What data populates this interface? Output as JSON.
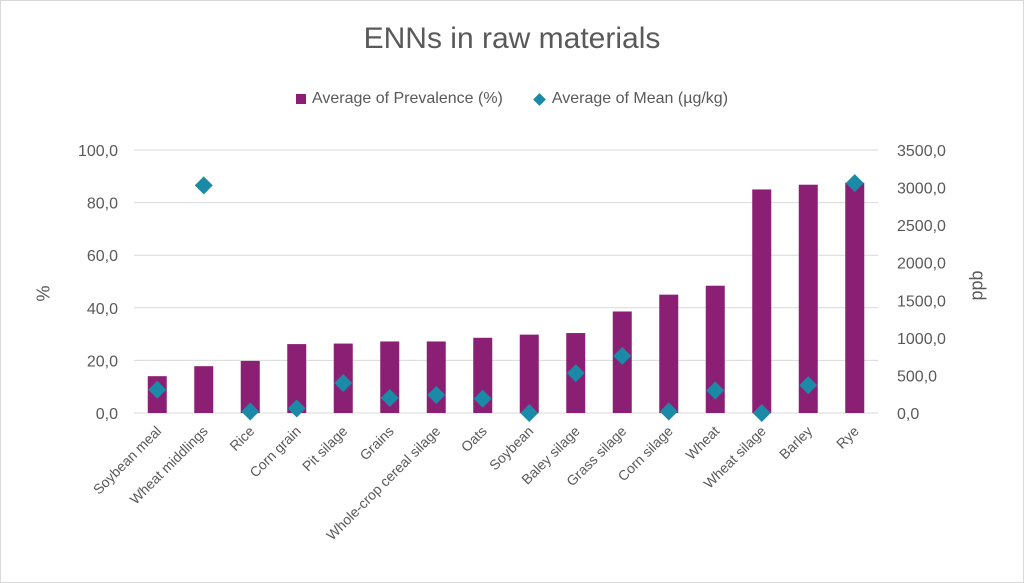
{
  "chart_data": {
    "type": "bar",
    "title": "ENNs in raw materials",
    "categories": [
      "Soybean meal",
      "Wheat middlings",
      "Rice",
      "Corn grain",
      "Pit silage",
      "Grains",
      "Whole-crop cereal silage",
      "Oats",
      "Soybean",
      "Baley silage",
      "Grass silage",
      "Corn silage",
      "Wheat",
      "Wheat silage",
      "Barley",
      "Rye"
    ],
    "series": [
      {
        "name": "Average of Prevalence (%)",
        "axis": "left",
        "kind": "bar",
        "color": "#8b1f73",
        "values": [
          14.0,
          17.8,
          19.8,
          26.2,
          26.4,
          27.2,
          27.2,
          28.6,
          29.8,
          30.4,
          38.6,
          45.0,
          48.4,
          85.0,
          86.8,
          87.6
        ]
      },
      {
        "name": "Average of Mean (µg/kg)",
        "axis": "right",
        "kind": "marker",
        "color": "#1a8aa6",
        "values": [
          310,
          3030,
          20,
          60,
          400,
          200,
          240,
          190,
          0,
          530,
          760,
          20,
          300,
          0,
          370,
          3060
        ]
      }
    ],
    "ylabel": "%",
    "y2label": "ppb",
    "ylim": [
      0,
      100
    ],
    "y2lim": [
      0,
      3500
    ],
    "yticks": [
      "100,0",
      "80,0",
      "60,0",
      "40,0",
      "20,0",
      "0,0"
    ],
    "y2ticks": [
      "3500,0",
      "3000,0",
      "2500,0",
      "2000,0",
      "1500,0",
      "1000,0",
      "500,0",
      "0,0"
    ],
    "legend_position": "top",
    "grid": true
  }
}
